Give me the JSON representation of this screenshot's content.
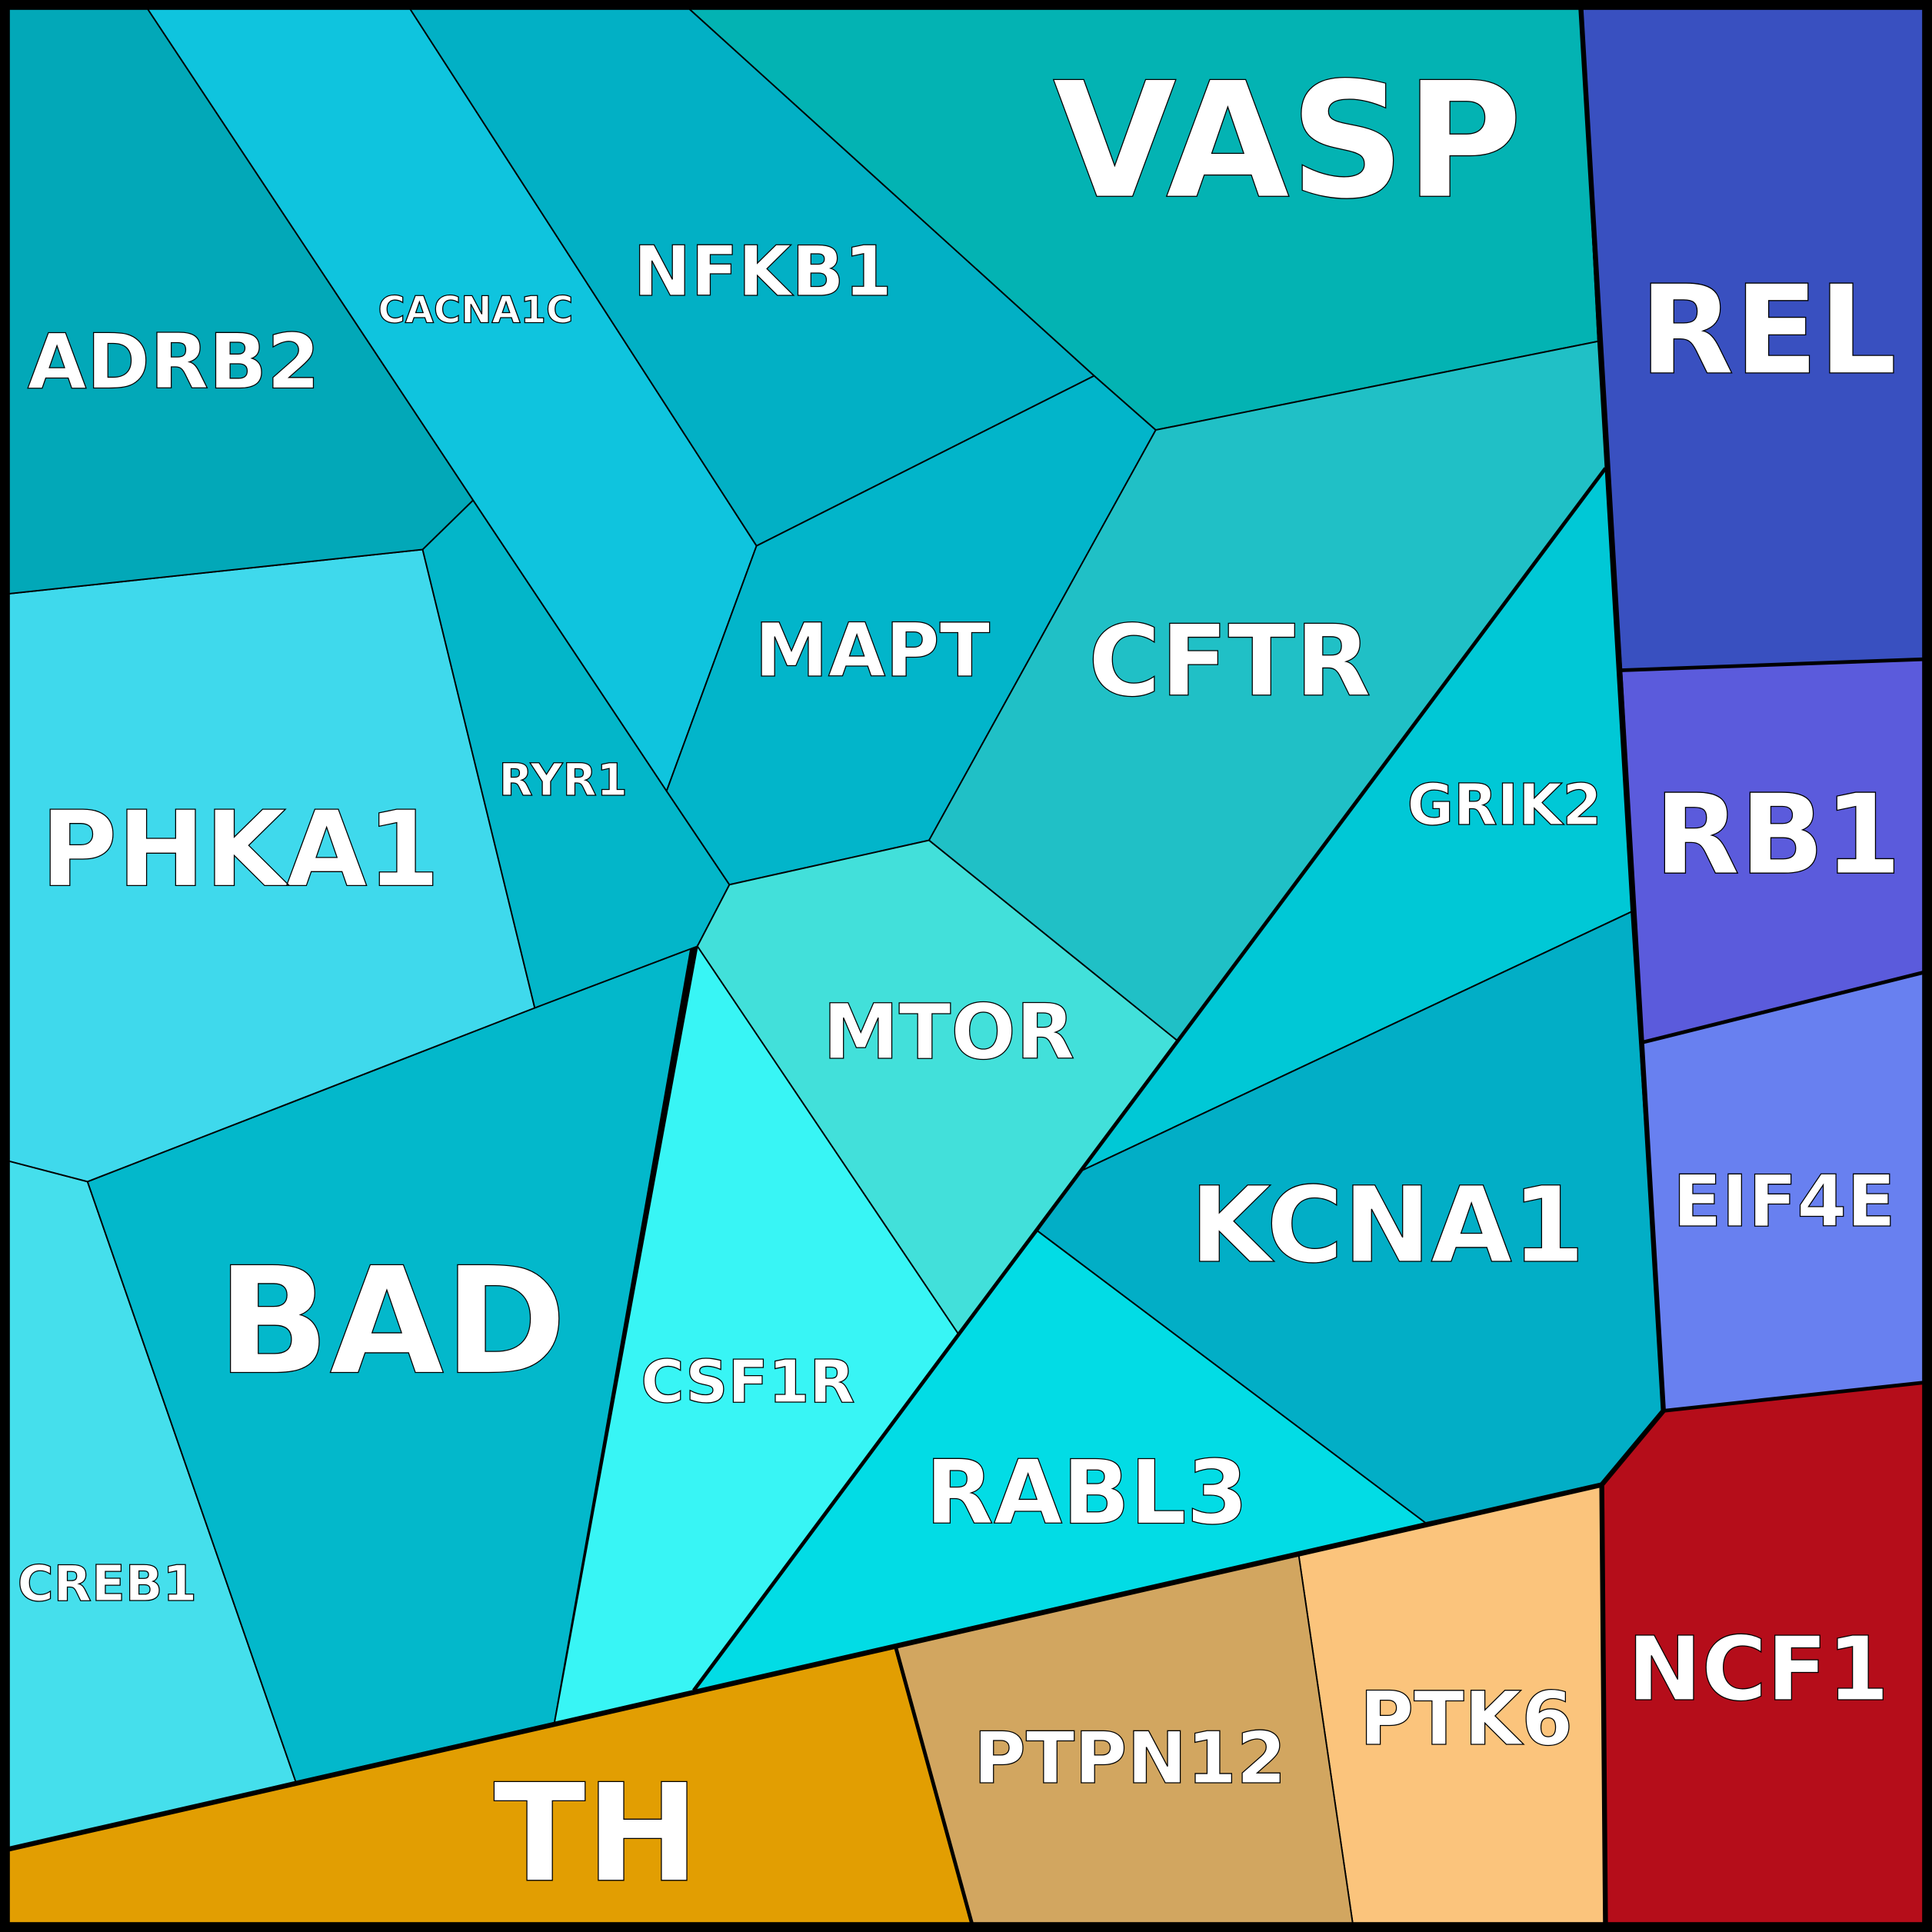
{
  "cells": [
    {
      "id": "VASP",
      "label": "VASP",
      "color": "#03b3b3"
    },
    {
      "id": "REL",
      "label": "REL",
      "color": "#3950c0"
    },
    {
      "id": "RB1",
      "label": "RB1",
      "color": "#5b5bdc"
    },
    {
      "id": "EIF4E",
      "label": "EIF4E",
      "color": "#6880f0"
    },
    {
      "id": "NCF1",
      "label": "NCF1",
      "color": "#b50d1a"
    },
    {
      "id": "PTK6",
      "label": "PTK6",
      "color": "#fbc47c"
    },
    {
      "id": "PTPN12",
      "label": "PTPN12",
      "color": "#d2a660"
    },
    {
      "id": "TH",
      "label": "TH",
      "color": "#e29e02"
    },
    {
      "id": "CREB1",
      "label": "CREB1",
      "color": "#45dfec"
    },
    {
      "id": "BAD",
      "label": "BAD",
      "color": "#03b8cb"
    },
    {
      "id": "PHKA1",
      "label": "PHKA1",
      "color": "#3fd9ec"
    },
    {
      "id": "ADRB2",
      "label": "ADRB2",
      "color": "#02a8b8"
    },
    {
      "id": "RYR1",
      "label": "RYR1",
      "color": "#03b6c9"
    },
    {
      "id": "CACNA1C",
      "label": "CACNA1C",
      "color": "#0fc4de"
    },
    {
      "id": "NFKB1",
      "label": "NFKB1",
      "color": "#02b0c5"
    },
    {
      "id": "MAPT",
      "label": "MAPT",
      "color": "#02b5ca"
    },
    {
      "id": "CFTR",
      "label": "CFTR",
      "color": "#20c0c6"
    },
    {
      "id": "GRIK2",
      "label": "GRIK2",
      "color": "#00c8d6"
    },
    {
      "id": "MTOR",
      "label": "MTOR",
      "color": "#42e0da"
    },
    {
      "id": "CSF1R",
      "label": "CSF1R",
      "color": "#38f5f5"
    },
    {
      "id": "KCNA1",
      "label": "KCNA1",
      "color": "#02aec6"
    },
    {
      "id": "RABL3",
      "label": "RABL3",
      "color": "#02dce5"
    }
  ]
}
